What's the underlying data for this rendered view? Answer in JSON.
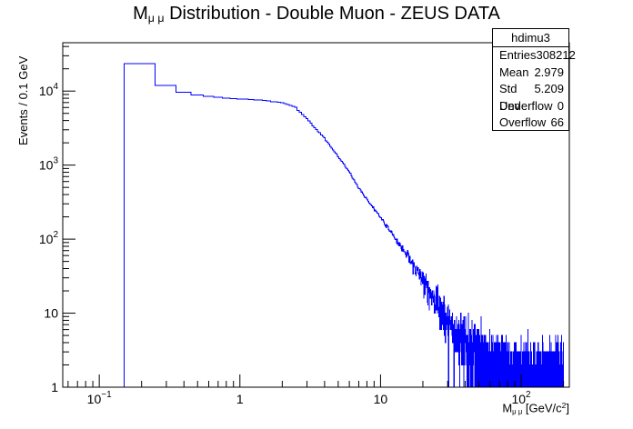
{
  "title": {
    "main": "M",
    "sub": "μ μ",
    "rest": " Distribution - Double Muon - ZEUS DATA"
  },
  "stats": {
    "name": "hdimu3",
    "rows": [
      {
        "label": "Entries",
        "value": "308212"
      },
      {
        "label": "Mean",
        "value": "2.979"
      },
      {
        "label": "Std Dev",
        "value": "5.209"
      },
      {
        "label": "Underflow",
        "value": "0"
      },
      {
        "label": "Overflow",
        "value": "66"
      }
    ]
  },
  "chart_data": {
    "type": "histogram",
    "color": "#0000ff",
    "ylabel": "Events / 0.1 GeV",
    "xlabel": {
      "main": "M",
      "sub": "μ μ",
      "rest": " [GeV/c",
      "sup": "2",
      "end": "]"
    },
    "x_scale": "log",
    "y_scale": "log",
    "xlim": [
      0.055,
      220
    ],
    "ylim": [
      1,
      45000
    ],
    "x_ticks": [
      {
        "value": 0.1,
        "label": "10",
        "sup": "−1"
      },
      {
        "value": 1,
        "label": "1",
        "sup": ""
      },
      {
        "value": 10,
        "label": "10",
        "sup": ""
      },
      {
        "value": 100,
        "label": "10",
        "sup": "2"
      }
    ],
    "y_ticks": [
      {
        "value": 1,
        "label": "1",
        "sup": ""
      },
      {
        "value": 10,
        "label": "10",
        "sup": ""
      },
      {
        "value": 100,
        "label": "10",
        "sup": "2"
      },
      {
        "value": 1000,
        "label": "10",
        "sup": "3"
      },
      {
        "value": 10000,
        "label": "10",
        "sup": "4"
      }
    ],
    "curve": [
      [
        0.15,
        23500
      ],
      [
        0.25,
        12000
      ],
      [
        0.35,
        10000
      ],
      [
        0.5,
        8800
      ],
      [
        0.7,
        8200
      ],
      [
        1.0,
        7800
      ],
      [
        1.5,
        7500
      ],
      [
        2.0,
        7000
      ],
      [
        2.5,
        6000
      ],
      [
        3.0,
        4200
      ],
      [
        4.0,
        2300
      ],
      [
        5.0,
        1300
      ],
      [
        6.0,
        800
      ],
      [
        7.0,
        500
      ],
      [
        8.0,
        340
      ],
      [
        10.0,
        200
      ],
      [
        12.0,
        120
      ],
      [
        15.0,
        65
      ],
      [
        20.0,
        28
      ],
      [
        25.0,
        14
      ],
      [
        30.0,
        8
      ],
      [
        40.0,
        4
      ],
      [
        50.0,
        2.5
      ],
      [
        70.0,
        1.5
      ],
      [
        100.0,
        1.2
      ],
      [
        140.0,
        1.0
      ],
      [
        200.0,
        1.0
      ]
    ],
    "first_bins": [
      {
        "x0": 0.15,
        "x1": 0.25,
        "y": 23500
      },
      {
        "x0": 0.25,
        "x1": 0.35,
        "y": 12000
      }
    ],
    "bin_width": 0.1,
    "x_max_bin": 200
  }
}
